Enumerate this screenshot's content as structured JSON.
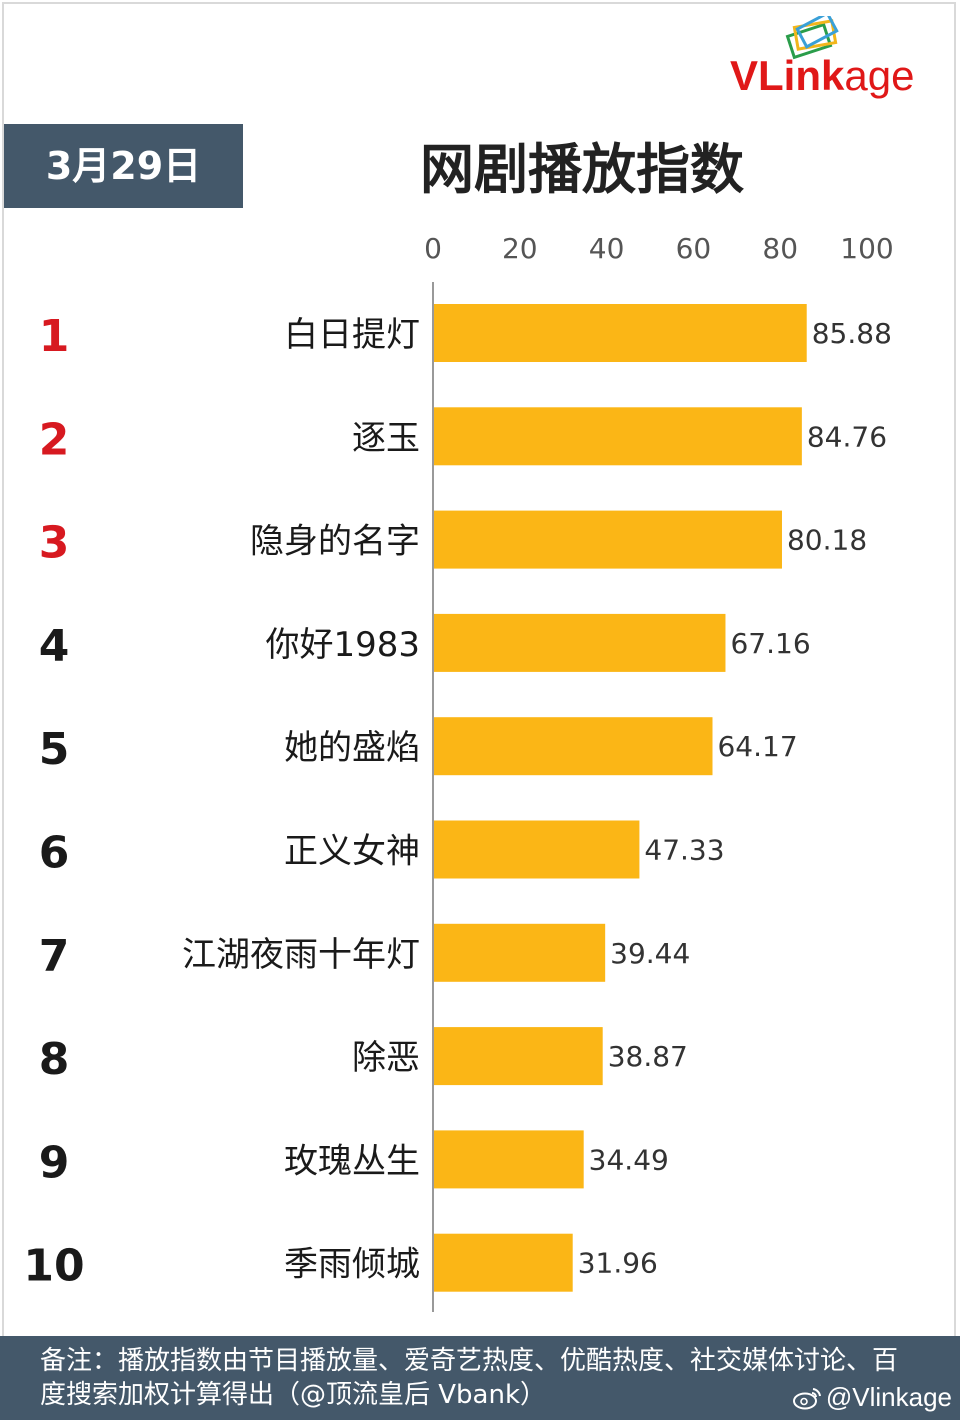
{
  "header": {
    "date": "3月29日",
    "title": "网剧播放指数",
    "logo": {
      "brand_main": "VLink",
      "brand_tail": "age",
      "icon": "vlinkage-logo-icon"
    }
  },
  "chart_data": {
    "type": "bar",
    "orientation": "horizontal",
    "title": "网剧播放指数",
    "xlim": [
      0,
      100
    ],
    "x_ticks": [
      "0",
      "20",
      "40",
      "60",
      "80",
      "100"
    ],
    "x_tick_values": [
      0,
      20,
      40,
      60,
      80,
      100
    ],
    "x_axis_position": "top",
    "grid": false,
    "bar_color": "#fbb616",
    "rank_colors": {
      "top3": "#d71920",
      "rest": "#1a1a1a"
    },
    "ranks": [
      "1",
      "2",
      "3",
      "4",
      "5",
      "6",
      "7",
      "8",
      "9",
      "10"
    ],
    "categories": [
      "白日提灯",
      "逐玉",
      "隐身的名字",
      "你好1983",
      "她的盛焰",
      "正义女神",
      "江湖夜雨十年灯",
      "除恶",
      "玫瑰丛生",
      "季雨倾城"
    ],
    "values": [
      85.88,
      84.76,
      80.18,
      67.16,
      64.17,
      47.33,
      39.44,
      38.87,
      34.49,
      31.96
    ],
    "value_labels": [
      "85.88",
      "84.76",
      "80.18",
      "67.16",
      "64.17",
      "47.33",
      "39.44",
      "38.87",
      "34.49",
      "31.96"
    ]
  },
  "footer": {
    "note": "备注：播放指数由节目播放量、爱奇艺热度、优酷热度、社交媒体讨论、百度搜索加权计算得出（@顶流皇后 Vbank）",
    "watermark": "@Vlinkage",
    "watermark_icon": "weibo-icon"
  }
}
